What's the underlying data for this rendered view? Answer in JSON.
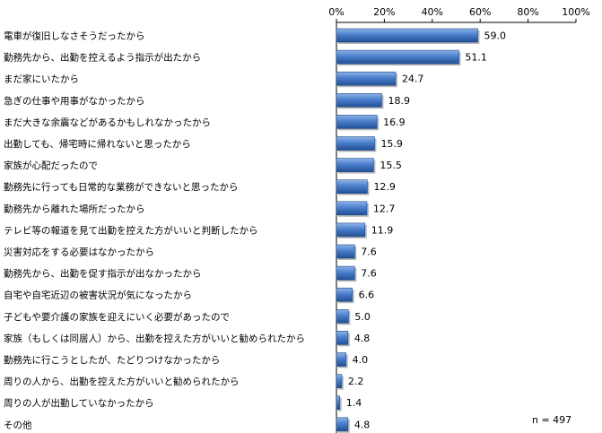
{
  "chart_data": {
    "type": "bar",
    "orientation": "horizontal",
    "categories": [
      "電車が復旧しなさそうだったから",
      "勤務先から、出勤を控えるよう指示が出たから",
      "まだ家にいたから",
      "急ぎの仕事や用事がなかったから",
      "まだ大きな余震などがあるかもしれなかったから",
      "出勤しても、帰宅時に帰れないと思ったから",
      "家族が心配だったので",
      "勤務先に行っても日常的な業務ができないと思ったから",
      "勤務先から離れた場所だったから",
      "テレビ等の報道を見て出勤を控えた方がいいと判断したから",
      "災害対応をする必要はなかったから",
      "勤務先から、出勤を促す指示が出なかったから",
      "自宅や自宅近辺の被害状況が気になったから",
      "子どもや要介護の家族を迎えにいく必要があったので",
      "家族（もしくは同居人）から、出勤を控えた方がいいと勧められたから",
      "勤務先に行こうとしたが、たどりつけなかったから",
      "周りの人から、出勤を控えた方がいいと勧められたから",
      "周りの人が出勤していなかったから",
      "その他"
    ],
    "values": [
      59.0,
      51.1,
      24.7,
      18.9,
      16.9,
      15.9,
      15.5,
      12.9,
      12.7,
      11.9,
      7.6,
      7.6,
      6.6,
      5.0,
      4.8,
      4.0,
      2.2,
      1.4,
      4.8
    ],
    "value_labels": [
      "59.0",
      "51.1",
      "24.7",
      "18.9",
      "16.9",
      "15.9",
      "15.5",
      "12.9",
      "12.7",
      "11.9",
      "7.6",
      "7.6",
      "6.6",
      "5.0",
      "4.8",
      "4.0",
      "2.2",
      "1.4",
      "4.8"
    ],
    "xlim": [
      0,
      100
    ],
    "x_ticks": [
      "0%",
      "20%",
      "40%",
      "60%",
      "80%",
      "100%"
    ],
    "axis_position": "top",
    "grid": false,
    "bar_color": "#3a6fb8",
    "bar_edge_color": "#1f4a8a",
    "note": "n = 497"
  }
}
